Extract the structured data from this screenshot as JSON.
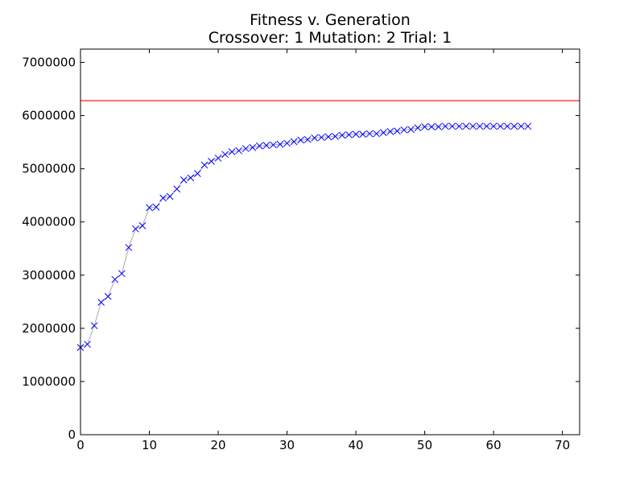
{
  "chart_data": {
    "type": "line",
    "title": "Fitness v. Generation",
    "subtitle": "Crossover: 1 Mutation: 2 Trial: 1",
    "xlabel": "",
    "ylabel": "",
    "xlim": [
      0,
      72.5
    ],
    "ylim": [
      0,
      7250000
    ],
    "x_ticks": [
      0,
      10,
      20,
      30,
      40,
      50,
      60,
      70
    ],
    "y_ticks": [
      0,
      1000000,
      2000000,
      3000000,
      4000000,
      5000000,
      6000000,
      7000000
    ],
    "x_tick_labels": [
      "0",
      "10",
      "20",
      "30",
      "40",
      "50",
      "60",
      "70"
    ],
    "y_tick_labels": [
      "0",
      "1000000",
      "2000000",
      "3000000",
      "4000000",
      "5000000",
      "6000000",
      "7000000"
    ],
    "grid": false,
    "reference_line": {
      "y": 6280000,
      "color": "#ff0000"
    },
    "series": [
      {
        "marker": "x",
        "marker_color": "#0000ff",
        "line_color": "#aaaaaa",
        "x": [
          0,
          1,
          2,
          3,
          4,
          5,
          6,
          7,
          8,
          9,
          10,
          11,
          12,
          13,
          14,
          15,
          16,
          17,
          18,
          19,
          20,
          21,
          22,
          23,
          24,
          25,
          26,
          27,
          28,
          29,
          30,
          31,
          32,
          33,
          34,
          35,
          36,
          37,
          38,
          39,
          40,
          41,
          42,
          43,
          44,
          45,
          46,
          47,
          48,
          49,
          50,
          51,
          52,
          53,
          54,
          55,
          56,
          57,
          58,
          59,
          60,
          61,
          62,
          63,
          64,
          65
        ],
        "y": [
          1640000,
          1700000,
          2050000,
          2490000,
          2600000,
          2920000,
          3030000,
          3520000,
          3870000,
          3930000,
          4270000,
          4280000,
          4450000,
          4480000,
          4620000,
          4790000,
          4830000,
          4910000,
          5070000,
          5140000,
          5200000,
          5270000,
          5320000,
          5340000,
          5380000,
          5400000,
          5430000,
          5440000,
          5450000,
          5460000,
          5480000,
          5510000,
          5540000,
          5550000,
          5580000,
          5590000,
          5600000,
          5610000,
          5630000,
          5640000,
          5650000,
          5650000,
          5660000,
          5660000,
          5680000,
          5700000,
          5710000,
          5730000,
          5740000,
          5770000,
          5790000,
          5790000,
          5790000,
          5800000,
          5800000,
          5800000,
          5800000,
          5800000,
          5800000,
          5800000,
          5800000,
          5800000,
          5800000,
          5800000,
          5800000,
          5800000
        ]
      }
    ]
  }
}
